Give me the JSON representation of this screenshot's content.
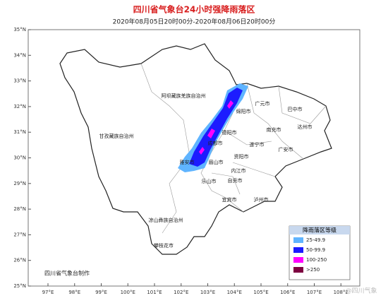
{
  "header": {
    "title": "四川省气象台24小时强降雨落区",
    "subtitle": "2020年08月05日20时00分-2020年08月06日20时00分"
  },
  "axes": {
    "lat_labels": [
      "35°N",
      "34°N",
      "33°N",
      "32°N",
      "31°N",
      "30°N",
      "29°N",
      "28°N",
      "27°N",
      "26°N",
      "25°N"
    ],
    "lon_labels": [
      "97°E",
      "98°E",
      "99°E",
      "100°E",
      "101°E",
      "102°E",
      "103°E",
      "104°E",
      "105°E",
      "106°E",
      "107°E",
      "108°E"
    ]
  },
  "regions": [
    "阿坝藏族羌族自治州",
    "甘孜藏族自治州",
    "凉山彝族自治州",
    "攀枝花市",
    "广元市",
    "绵阳市",
    "巴中市",
    "达州市",
    "南充市",
    "德阳市",
    "遂宁市",
    "广安市",
    "成都市",
    "资阳市",
    "眉山市",
    "雅安市",
    "内江市",
    "乐山市",
    "自贡市",
    "宜宾市",
    "泸州市"
  ],
  "legend": {
    "title": "降雨落区等级",
    "items": [
      {
        "label": "25-49.9",
        "color": "#5fb4ff"
      },
      {
        "label": "50-99.9",
        "color": "#1c1cff"
      },
      {
        "label": "100-250",
        "color": "#ff00ff"
      },
      {
        "label": ">250",
        "color": "#7d0040"
      }
    ]
  },
  "footer": "四川省气象台制作",
  "watermark": "@四川气象"
}
